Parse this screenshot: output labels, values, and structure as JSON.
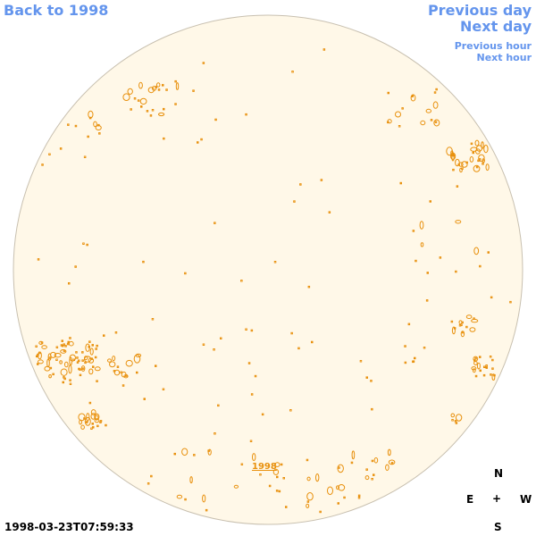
{
  "nav": {
    "back": "Back to 1998",
    "previous_day": "Previous day",
    "next_day": "Next day",
    "previous_hour": "Previous hour",
    "next_hour": "Next hour"
  },
  "disk": {
    "year_label": "1998",
    "timestamp": "1998-03-23T07:59:33"
  },
  "compass": {
    "n": "N",
    "e": "E",
    "center": "+",
    "w": "W",
    "s": "S"
  },
  "colors": {
    "link": "#6495ed",
    "disk_fill": "#fff8e8",
    "disk_border": "#c8c0b0",
    "feature": "#e8900c"
  }
}
